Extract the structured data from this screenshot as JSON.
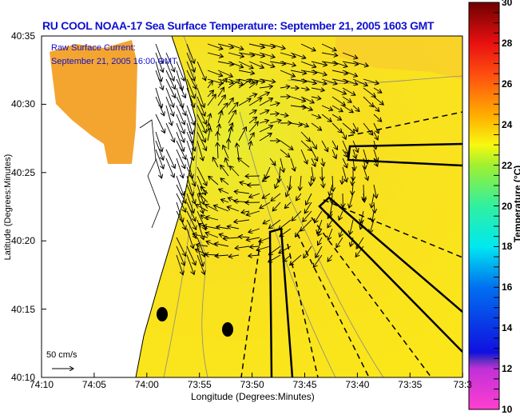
{
  "title": "RU COOL  NOAA-17  Sea Surface Temperature:  September 21, 2005 1603 GMT",
  "legend": {
    "line1": "Raw Surface Current:",
    "line2": "September 21, 2005 16:00 GMT",
    "scale_label": "50 cm/s"
  },
  "axes": {
    "xlabel": "Longitude (Degrees:Minutes)",
    "ylabel": "Latitude (Degrees:Minutes)",
    "xticks": [
      "74:10",
      "74:05",
      "74:00",
      "73:55",
      "73:50",
      "73:45",
      "73:40",
      "73:35",
      "73:3"
    ],
    "yticks": [
      "40:35",
      "40:30",
      "40:25",
      "40:20",
      "40:15",
      "40:10"
    ]
  },
  "colorbar": {
    "label": "Temperature (°C)",
    "ticks": [
      "30",
      "28",
      "26",
      "24",
      "22",
      "20",
      "18",
      "16",
      "14",
      "12",
      "10"
    ],
    "min": 10,
    "max": 30
  },
  "colors": {
    "title": "#1010d0",
    "sea": "#f6e21a",
    "land": "#ffffff"
  }
}
